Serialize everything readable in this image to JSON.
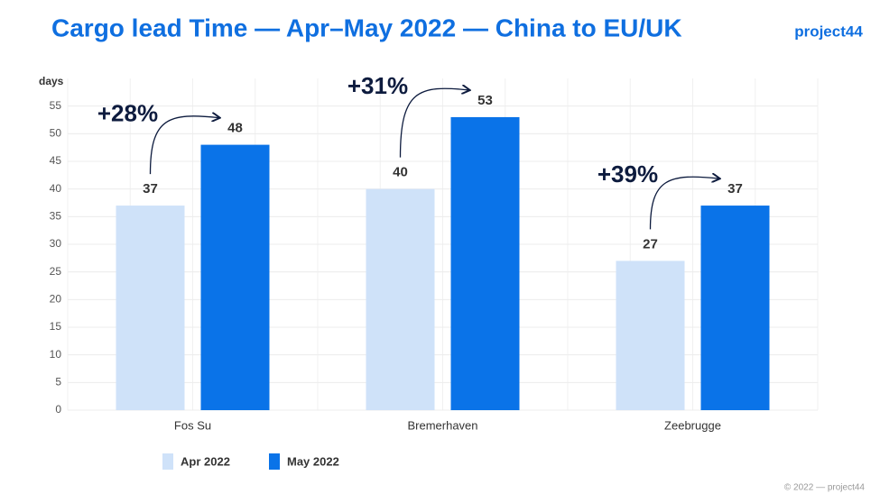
{
  "chart_data": {
    "type": "bar",
    "title": "Cargo lead Time — Apr–May 2022 — China to EU/UK",
    "y_label": "days",
    "categories": [
      "Fos Su",
      "Bremerhaven",
      "Zeebrugge"
    ],
    "series": [
      {
        "name": "Apr 2022",
        "color": "#cfe2f9",
        "values": [
          37,
          40,
          27
        ]
      },
      {
        "name": "May 2022",
        "color": "#0a73e8",
        "values": [
          48,
          53,
          37
        ]
      }
    ],
    "annotations": [
      "+28%",
      "+31%",
      "+39%"
    ],
    "ylim": [
      0,
      60
    ],
    "yticks": [
      0,
      5,
      10,
      15,
      20,
      25,
      30,
      35,
      40,
      45,
      50,
      55
    ],
    "grid": true,
    "logo": "project44",
    "footer": "© 2022 — project44"
  }
}
